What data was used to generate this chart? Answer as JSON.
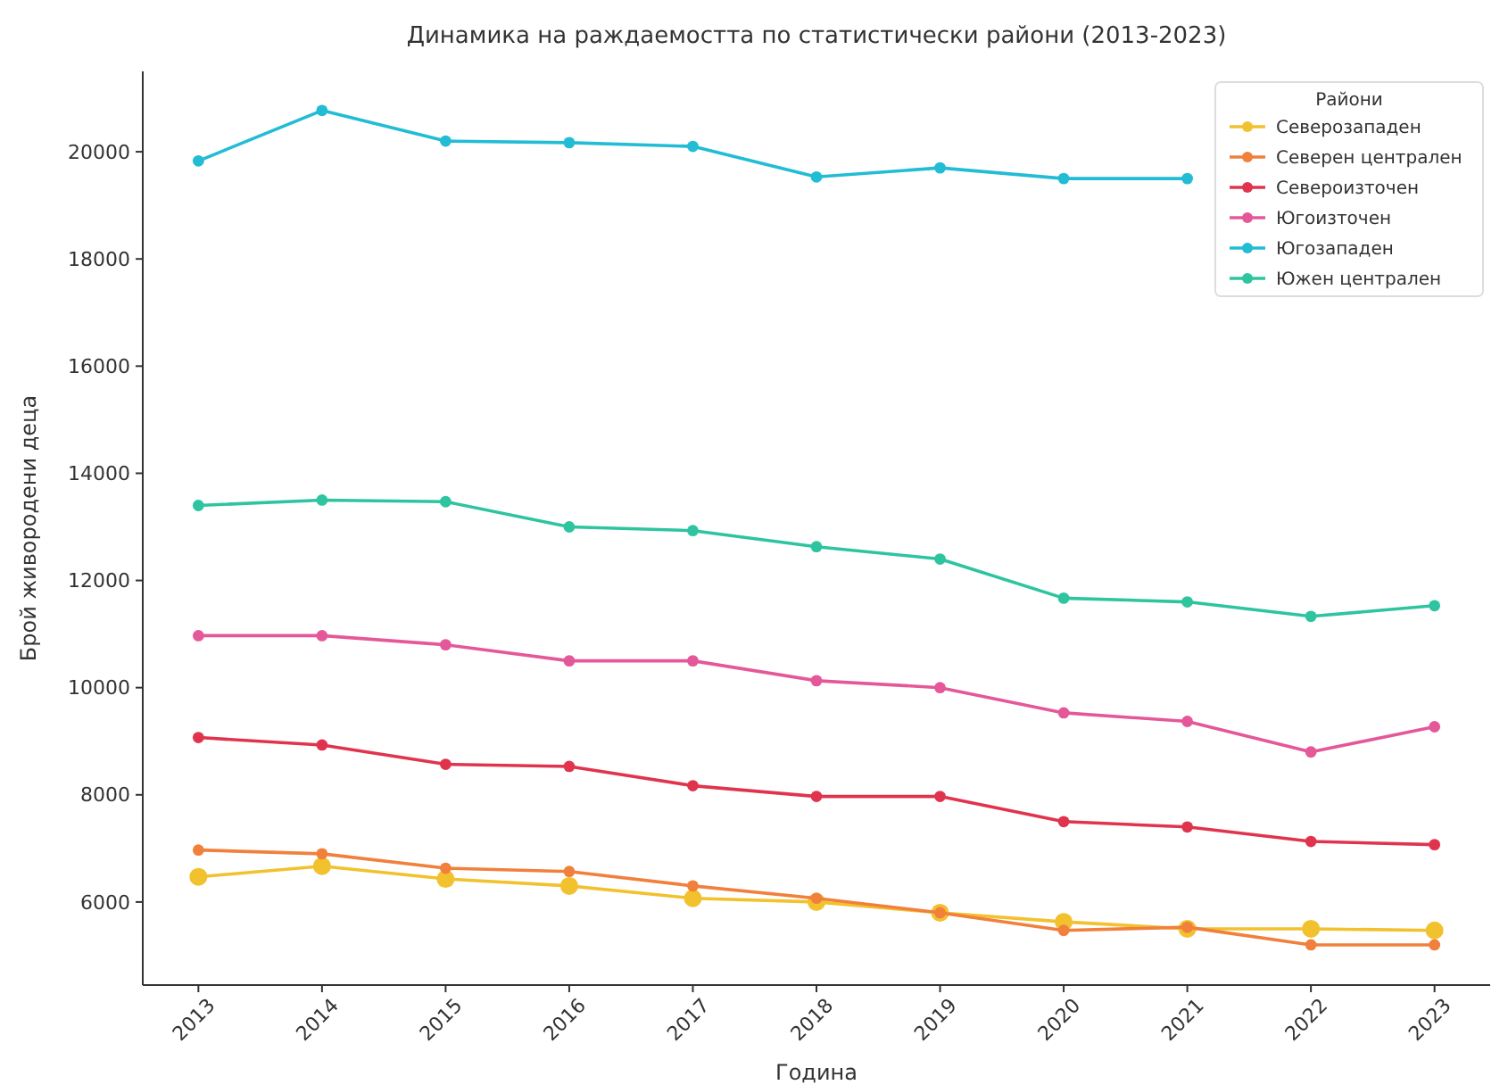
{
  "chart_data": {
    "type": "line",
    "title": "Динамика на раждаемостта по статистически райони (2013-2023)",
    "xlabel": "Година",
    "ylabel": "Брой живородени деца",
    "legend_title": "Райони",
    "legend": "top right",
    "marker": "circle",
    "line_style": "solid",
    "grid": false,
    "categories": [
      "2013",
      "2014",
      "2015",
      "2016",
      "2017",
      "2018",
      "2019",
      "2020",
      "2021",
      "2022",
      "2023"
    ],
    "ylim": [
      4450,
      21500
    ],
    "yticks": [
      6000,
      8000,
      10000,
      12000,
      14000,
      16000,
      18000,
      20000
    ],
    "series": [
      {
        "name": "Северозападен",
        "color": "#f2c12e",
        "values": [
          6470,
          6670,
          6430,
          6300,
          6070,
          6000,
          5800,
          5630,
          5500,
          5500,
          5470
        ]
      },
      {
        "name": "Северен централен",
        "color": "#f0803c",
        "values": [
          6970,
          6900,
          6630,
          6570,
          6300,
          6070,
          5800,
          5470,
          5530,
          5200,
          5200
        ]
      },
      {
        "name": "Североизточен",
        "color": "#e0344e",
        "values": [
          9070,
          8930,
          8570,
          8530,
          8170,
          7970,
          7970,
          7500,
          7400,
          7130,
          7070
        ]
      },
      {
        "name": "Югоизточен",
        "color": "#e4589a",
        "values": [
          10970,
          10970,
          10800,
          10500,
          10500,
          10130,
          10000,
          9530,
          9370,
          8800,
          9270
        ]
      },
      {
        "name": "Югозападен",
        "color": "#22bcd4",
        "values": [
          19830,
          20770,
          20200,
          20170,
          20100,
          19530,
          19700,
          19500,
          19500,
          null,
          null
        ]
      },
      {
        "name": "Южен централен",
        "color": "#2ec4a0",
        "values": [
          13400,
          13500,
          13470,
          13000,
          12930,
          12630,
          12400,
          11670,
          11600,
          11330,
          11530
        ]
      }
    ]
  }
}
